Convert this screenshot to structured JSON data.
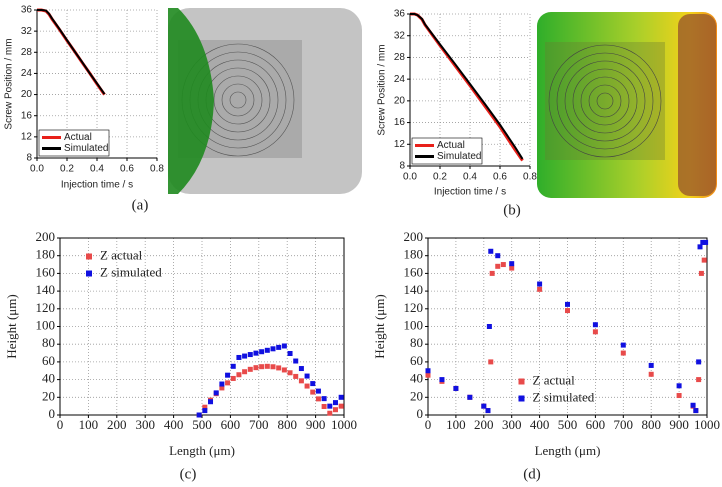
{
  "chart_data": [
    {
      "type": "line",
      "caption": "(a)",
      "x_label": "Injection time / s",
      "y_label": "Screw Position / mm",
      "x": [
        0,
        0.03,
        0.06,
        0.08,
        0.1,
        0.15,
        0.2,
        0.25,
        0.3,
        0.35,
        0.4,
        0.45
      ],
      "series": [
        {
          "name": "Actual",
          "color": "#e8201a",
          "values": [
            36,
            36,
            35.8,
            35.2,
            34.3,
            32.3,
            30.2,
            28.2,
            26.1,
            24.1,
            22.0,
            20.0
          ]
        },
        {
          "name": "Simulated",
          "color": "#000000",
          "values": [
            36,
            36,
            35.9,
            35.3,
            34.4,
            32.4,
            30.3,
            28.2,
            26.2,
            24.1,
            22.1,
            20.1
          ]
        }
      ],
      "xlim": [
        0,
        0.8
      ],
      "xticks": [
        {
          "value": 0,
          "label": "0.0"
        },
        0.2,
        0.4,
        0.6,
        0.8
      ],
      "ylim": [
        8,
        36
      ],
      "yticks": [
        8,
        12,
        16,
        20,
        24,
        28,
        32,
        36
      ],
      "grid": true,
      "legend": "lower left"
    },
    {
      "type": "line",
      "caption": "(b)",
      "x_label": "Injection time / s",
      "y_label": "Screw Position / mm",
      "x": [
        0,
        0.03,
        0.05,
        0.08,
        0.1,
        0.2,
        0.3,
        0.4,
        0.5,
        0.6,
        0.7,
        0.75
      ],
      "series": [
        {
          "name": "Actual",
          "color": "#e8201a",
          "values": [
            36,
            36,
            35.8,
            35,
            34,
            30.2,
            26.5,
            22.8,
            19.0,
            15.2,
            11.0,
            9.0
          ]
        },
        {
          "name": "Simulated",
          "color": "#000000",
          "values": [
            36,
            36,
            35.8,
            35.1,
            34.1,
            30.4,
            26.8,
            23.1,
            19.4,
            15.6,
            11.5,
            9.3
          ]
        }
      ],
      "xlim": [
        0,
        0.8
      ],
      "xticks": [
        {
          "value": 0,
          "label": "0.0"
        },
        0.2,
        0.4,
        0.6,
        0.8
      ],
      "ylim": [
        8,
        36
      ],
      "yticks": [
        8,
        12,
        16,
        20,
        24,
        28,
        32,
        36
      ],
      "grid": true,
      "legend": "lower left"
    },
    {
      "type": "scatter",
      "caption": "(c)",
      "x_label": "Length (μm)",
      "y_label": "Height (μm)",
      "x": [
        490,
        510,
        530,
        550,
        570,
        590,
        610,
        630,
        650,
        670,
        690,
        710,
        730,
        750,
        770,
        790,
        810,
        830,
        850,
        870,
        890,
        910,
        930,
        950,
        970,
        990
      ],
      "series": [
        {
          "name": "Z actual",
          "color": "#e84a4a",
          "values": [
            0,
            8.8,
            16.8,
            24.1,
            30.6,
            36.3,
            41.3,
            45.5,
            48.9,
            51.6,
            53.5,
            54.6,
            55,
            54.5,
            53.2,
            50.9,
            47.7,
            43.6,
            38.6,
            32.7,
            25.9,
            18.2,
            9.6,
            2,
            6,
            10
          ]
        },
        {
          "name": "Z simulated",
          "color": "#1010e0",
          "values": [
            0,
            5,
            15,
            25,
            35,
            45,
            55,
            65,
            66.6,
            68.3,
            69.9,
            71.5,
            73.1,
            74.8,
            76.4,
            78,
            69.5,
            61,
            52.5,
            44,
            35.5,
            27,
            18.5,
            10,
            14,
            20
          ]
        }
      ],
      "xlim": [
        0,
        1000
      ],
      "xticks": [
        0,
        100,
        200,
        300,
        400,
        500,
        600,
        700,
        800,
        900,
        1000
      ],
      "ylim": [
        0,
        200
      ],
      "yticks": [
        0,
        20,
        40,
        60,
        80,
        100,
        120,
        140,
        160,
        180,
        200
      ],
      "grid": true,
      "legend": "upper left"
    },
    {
      "type": "scatter",
      "caption": "(d)",
      "x_label": "Length (μm)",
      "y_label": "Height (μm)",
      "series": [
        {
          "name": "Z actual",
          "color": "#e84a4a",
          "x": [
            0,
            50,
            100,
            150,
            200,
            215,
            225,
            230,
            250,
            270,
            300,
            400,
            500,
            600,
            700,
            800,
            900,
            950,
            960,
            970,
            980,
            990
          ],
          "values": [
            45,
            38,
            30,
            20,
            10,
            5,
            60,
            160,
            168,
            170,
            166,
            142,
            118,
            94,
            70,
            46,
            22,
            10,
            5,
            40,
            160,
            175
          ]
        },
        {
          "name": "Z simulated",
          "color": "#1010e0",
          "x": [
            0,
            50,
            100,
            150,
            200,
            215,
            220,
            225,
            250,
            300,
            400,
            500,
            600,
            700,
            800,
            900,
            950,
            960,
            970,
            975,
            985,
            995
          ],
          "values": [
            50,
            40,
            30,
            20,
            10,
            5,
            100,
            185,
            180,
            171,
            148,
            125,
            102,
            79,
            56,
            33,
            11,
            5,
            60,
            190,
            195,
            195
          ]
        }
      ],
      "xlim": [
        0,
        1000
      ],
      "xticks": [
        0,
        100,
        200,
        300,
        400,
        500,
        600,
        700,
        800,
        900,
        1000
      ],
      "ylim": [
        0,
        200
      ],
      "yticks": [
        0,
        20,
        40,
        60,
        80,
        100,
        120,
        140,
        160,
        180,
        200
      ],
      "grid": true,
      "legend": "lower center"
    }
  ]
}
